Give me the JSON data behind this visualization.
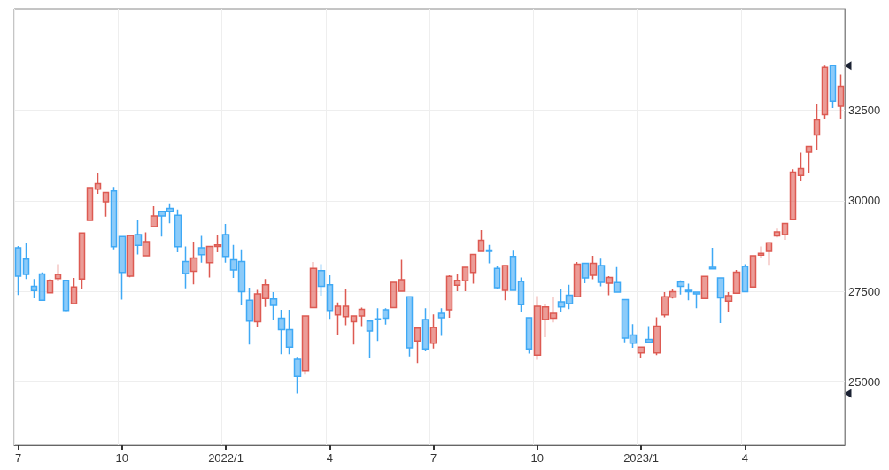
{
  "chart_data": {
    "type": "candlestick",
    "categories": [
      "7",
      null,
      null,
      null,
      null,
      null,
      null,
      null,
      null,
      null,
      null,
      null,
      null,
      "10",
      null,
      null,
      null,
      null,
      null,
      null,
      null,
      null,
      null,
      null,
      null,
      null,
      "2022/1",
      null,
      null,
      null,
      null,
      null,
      null,
      null,
      null,
      null,
      null,
      null,
      null,
      "4",
      null,
      null,
      null,
      null,
      null,
      null,
      null,
      null,
      null,
      null,
      null,
      null,
      "7",
      null,
      null,
      null,
      null,
      null,
      null,
      null,
      null,
      null,
      null,
      null,
      null,
      "10",
      null,
      null,
      null,
      null,
      null,
      null,
      null,
      null,
      null,
      null,
      null,
      null,
      "2023/1",
      null,
      null,
      null,
      null,
      null,
      null,
      null,
      null,
      null,
      null,
      null,
      null,
      "4",
      null,
      null,
      null,
      null,
      null,
      null,
      null,
      null,
      null,
      null,
      null,
      null
    ],
    "ohlc": [
      [
        28700,
        28750,
        27400,
        27920
      ],
      [
        28390,
        28820,
        27840,
        27970
      ],
      [
        27640,
        27840,
        27310,
        27520
      ],
      [
        27980,
        28020,
        27250,
        27250
      ],
      [
        27460,
        27840,
        27460,
        27800
      ],
      [
        27850,
        28250,
        27790,
        27970
      ],
      [
        27800,
        27800,
        26940,
        26970
      ],
      [
        27160,
        27870,
        27160,
        27620
      ],
      [
        27840,
        29110,
        27570,
        29110
      ],
      [
        29460,
        30360,
        29460,
        30360
      ],
      [
        30320,
        30770,
        30190,
        30470
      ],
      [
        29970,
        30230,
        29560,
        30230
      ],
      [
        30270,
        30380,
        28660,
        28730
      ],
      [
        29010,
        29010,
        27270,
        28020
      ],
      [
        27920,
        29040,
        27890,
        29040
      ],
      [
        29070,
        29460,
        28520,
        28770
      ],
      [
        28480,
        29130,
        28480,
        28870
      ],
      [
        29290,
        29850,
        29270,
        29580
      ],
      [
        29710,
        29710,
        29010,
        29580
      ],
      [
        29790,
        29930,
        29380,
        29710
      ],
      [
        29600,
        29760,
        28580,
        28730
      ],
      [
        28320,
        28740,
        27580,
        27990
      ],
      [
        28050,
        28870,
        27690,
        28420
      ],
      [
        28700,
        29030,
        28290,
        28510
      ],
      [
        28290,
        28740,
        27880,
        28740
      ],
      [
        28740,
        29070,
        28580,
        28780
      ],
      [
        29070,
        29360,
        28290,
        28460
      ],
      [
        28370,
        28780,
        27870,
        28090
      ],
      [
        28320,
        28660,
        27110,
        27490
      ],
      [
        27250,
        27600,
        26030,
        26680
      ],
      [
        26660,
        27540,
        26520,
        27430
      ],
      [
        27300,
        27840,
        27070,
        27680
      ],
      [
        27290,
        27480,
        26700,
        27110
      ],
      [
        26760,
        26990,
        25760,
        26440
      ],
      [
        26440,
        26990,
        25760,
        25960
      ],
      [
        25620,
        25690,
        24680,
        25150
      ],
      [
        25310,
        26820,
        25200,
        26820
      ],
      [
        27050,
        28310,
        27050,
        28130
      ],
      [
        28070,
        28250,
        27380,
        27640
      ],
      [
        27680,
        27940,
        26740,
        26970
      ],
      [
        26850,
        27190,
        26290,
        27090
      ],
      [
        26800,
        27560,
        26560,
        27090
      ],
      [
        26660,
        26820,
        26030,
        26820
      ],
      [
        26820,
        27050,
        26540,
        27000
      ],
      [
        26680,
        26680,
        25660,
        26400
      ],
      [
        26740,
        27030,
        26130,
        26720
      ],
      [
        26990,
        27030,
        26580,
        26760
      ],
      [
        27050,
        27750,
        27050,
        27750
      ],
      [
        27500,
        28370,
        27500,
        27820
      ],
      [
        27350,
        27350,
        25700,
        25940
      ],
      [
        26130,
        26480,
        25520,
        26480
      ],
      [
        26720,
        27030,
        25840,
        25910
      ],
      [
        26070,
        26860,
        25920,
        26500
      ],
      [
        26890,
        27030,
        26270,
        26770
      ],
      [
        26990,
        27940,
        26770,
        27910
      ],
      [
        27670,
        27980,
        27500,
        27800
      ],
      [
        27790,
        28160,
        27500,
        28160
      ],
      [
        28020,
        28520,
        27710,
        28520
      ],
      [
        28600,
        29190,
        28600,
        28910
      ],
      [
        28640,
        28780,
        28270,
        28600
      ],
      [
        28130,
        28190,
        27560,
        27600
      ],
      [
        27530,
        28210,
        27250,
        28210
      ],
      [
        28460,
        28620,
        27530,
        27530
      ],
      [
        27770,
        27880,
        26940,
        27130
      ],
      [
        26770,
        26770,
        25780,
        25910
      ],
      [
        25740,
        27370,
        25610,
        27090
      ],
      [
        26720,
        27150,
        26230,
        27070
      ],
      [
        26760,
        27350,
        26640,
        26890
      ],
      [
        27210,
        27560,
        26940,
        27070
      ],
      [
        27390,
        27680,
        27010,
        27160
      ],
      [
        27350,
        28310,
        27350,
        28250
      ],
      [
        28270,
        28270,
        27720,
        27870
      ],
      [
        27940,
        28480,
        27830,
        28270
      ],
      [
        28210,
        28400,
        27640,
        27750
      ],
      [
        27720,
        27920,
        27390,
        27880
      ],
      [
        27740,
        28170,
        27480,
        27480
      ],
      [
        27270,
        27270,
        26090,
        26210
      ],
      [
        26290,
        26590,
        25940,
        26070
      ],
      [
        25800,
        25960,
        25650,
        25960
      ],
      [
        26170,
        26540,
        26100,
        26100
      ],
      [
        25800,
        26780,
        25740,
        26540
      ],
      [
        26850,
        27480,
        26780,
        27350
      ],
      [
        27340,
        27570,
        27300,
        27490
      ],
      [
        27760,
        27800,
        27410,
        27640
      ],
      [
        27530,
        27710,
        27250,
        27490
      ],
      [
        27480,
        27480,
        27030,
        27430
      ],
      [
        27300,
        27910,
        27300,
        27910
      ],
      [
        28160,
        28700,
        28120,
        28120
      ],
      [
        27870,
        27870,
        26620,
        27320
      ],
      [
        27230,
        27480,
        26940,
        27380
      ],
      [
        27450,
        28090,
        27450,
        28030
      ],
      [
        28190,
        28250,
        27490,
        27490
      ],
      [
        27620,
        28480,
        27620,
        28480
      ],
      [
        28500,
        28740,
        28420,
        28550
      ],
      [
        28600,
        28840,
        28230,
        28840
      ],
      [
        29030,
        29230,
        28990,
        29140
      ],
      [
        29070,
        29370,
        28920,
        29370
      ],
      [
        29490,
        30870,
        29490,
        30790
      ],
      [
        30700,
        31330,
        30550,
        30890
      ],
      [
        31340,
        31520,
        30760,
        31500
      ],
      [
        31820,
        32670,
        31400,
        32230
      ],
      [
        32380,
        33730,
        32260,
        33680
      ],
      [
        33730,
        33730,
        32560,
        32750
      ],
      [
        32610,
        33480,
        32270,
        33160
      ]
    ],
    "colors": [
      "#3fa9f5",
      "#3fa9f5",
      "#3fa9f5",
      "#3fa9f5",
      "#dd5a52",
      "#dd5a52",
      "#3fa9f5",
      "#dd5a52",
      "#dd5a52",
      "#dd5a52",
      "#dd5a52",
      "#dd5a52",
      "#3fa9f5",
      "#3fa9f5",
      "#dd5a52",
      "#3fa9f5",
      "#dd5a52",
      "#dd5a52",
      "#3fa9f5",
      "#3fa9f5",
      "#3fa9f5",
      "#3fa9f5",
      "#dd5a52",
      "#3fa9f5",
      "#dd5a52",
      "#dd5a52",
      "#3fa9f5",
      "#3fa9f5",
      "#3fa9f5",
      "#3fa9f5",
      "#dd5a52",
      "#dd5a52",
      "#3fa9f5",
      "#3fa9f5",
      "#3fa9f5",
      "#3fa9f5",
      "#dd5a52",
      "#dd5a52",
      "#3fa9f5",
      "#3fa9f5",
      "#dd5a52",
      "#dd5a52",
      "#dd5a52",
      "#dd5a52",
      "#3fa9f5",
      "#3fa9f5",
      "#3fa9f5",
      "#dd5a52",
      "#dd5a52",
      "#3fa9f5",
      "#dd5a52",
      "#3fa9f5",
      "#dd5a52",
      "#3fa9f5",
      "#dd5a52",
      "#dd5a52",
      "#dd5a52",
      "#dd5a52",
      "#dd5a52",
      "#3fa9f5",
      "#3fa9f5",
      "#dd5a52",
      "#3fa9f5",
      "#3fa9f5",
      "#3fa9f5",
      "#dd5a52",
      "#dd5a52",
      "#dd5a52",
      "#3fa9f5",
      "#3fa9f5",
      "#dd5a52",
      "#3fa9f5",
      "#dd5a52",
      "#3fa9f5",
      "#dd5a52",
      "#3fa9f5",
      "#3fa9f5",
      "#3fa9f5",
      "#dd5a52",
      "#3fa9f5",
      "#dd5a52",
      "#dd5a52",
      "#dd5a52",
      "#3fa9f5",
      "#3fa9f5",
      "#3fa9f5",
      "#dd5a52",
      "#3fa9f5",
      "#3fa9f5",
      "#dd5a52",
      "#dd5a52",
      "#3fa9f5",
      "#dd5a52",
      "#dd5a52",
      "#dd5a52",
      "#dd5a52",
      "#dd5a52",
      "#dd5a52",
      "#dd5a52",
      "#dd5a52",
      "#dd5a52",
      "#dd5a52",
      "#3fa9f5",
      "#dd5a52"
    ],
    "ylim": [
      23250,
      35300
    ],
    "yticks": [
      25000,
      27500,
      30000,
      32500
    ],
    "grid": true
  }
}
